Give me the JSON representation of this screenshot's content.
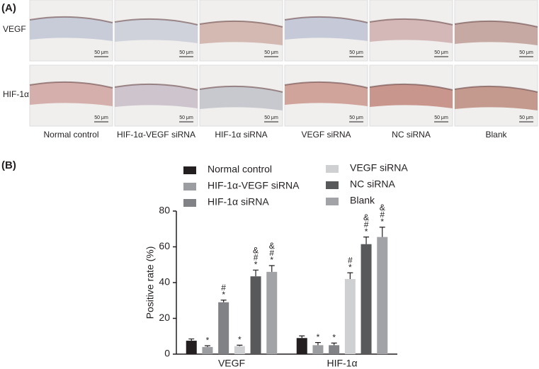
{
  "panel_labels": [
    "(A)",
    "(B)"
  ],
  "panel_a": {
    "rows": [
      "VEGF",
      "HIF-1α"
    ],
    "columns": [
      "Normal control",
      "HIF-1α-VEGF siRNA",
      "HIF-1α siRNA",
      "VEGF siRNA",
      "NC siRNA",
      "Blank"
    ],
    "scale_bar": "50 μm"
  },
  "chart_data": {
    "type": "bar",
    "y_label": "Positive rate (%)",
    "categories": [
      "VEGF",
      "HIF-1α"
    ],
    "ylim": [
      0,
      80
    ],
    "yticks": [
      0,
      20,
      40,
      60,
      80
    ],
    "series": [
      {
        "name": "Normal control",
        "color": "#231f20",
        "values": [
          7.5,
          9
        ],
        "errors": [
          1,
          1.2
        ],
        "annotations": [
          null,
          null
        ]
      },
      {
        "name": "HIF-1α-VEGF siRNA",
        "color": "#9b9da0",
        "values": [
          4,
          5
        ],
        "errors": [
          0.7,
          1.5
        ],
        "annotations": [
          [
            "*"
          ],
          [
            "*"
          ]
        ]
      },
      {
        "name": "HIF-1α siRNA",
        "color": "#808285",
        "values": [
          29,
          5
        ],
        "errors": [
          1.2,
          1.2
        ],
        "annotations": [
          [
            "#",
            "*"
          ],
          [
            "*"
          ]
        ]
      },
      {
        "name": "VEGF siRNA",
        "color": "#cfd0d2",
        "values": [
          4.5,
          42
        ],
        "errors": [
          0.5,
          3.5
        ],
        "annotations": [
          [
            "*"
          ],
          [
            "#",
            "*"
          ]
        ]
      },
      {
        "name": "NC siRNA",
        "color": "#58595b",
        "values": [
          43.5,
          61.5
        ],
        "errors": [
          3.5,
          4
        ],
        "annotations": [
          [
            "&",
            "#",
            "*"
          ],
          [
            "&",
            "#",
            "*"
          ]
        ]
      },
      {
        "name": "Blank",
        "color": "#a1a3a6",
        "values": [
          46,
          65.5
        ],
        "errors": [
          3.5,
          5.5
        ],
        "annotations": [
          [
            "&",
            "#",
            "*"
          ],
          [
            "&",
            "#",
            "*"
          ]
        ]
      }
    ]
  }
}
